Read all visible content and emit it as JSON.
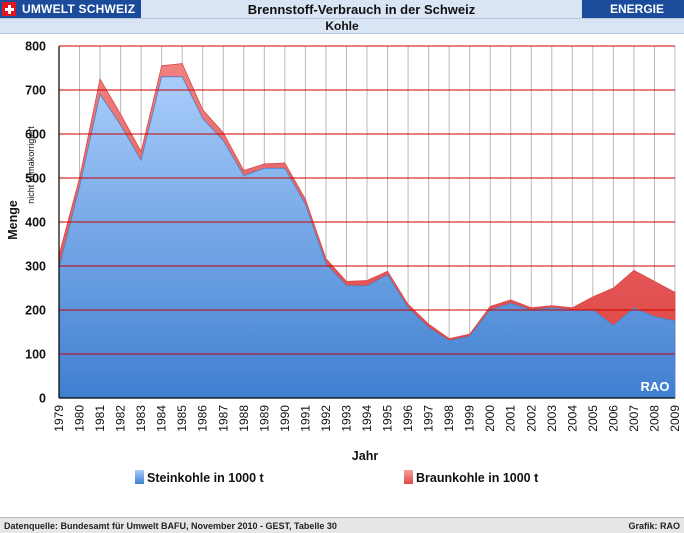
{
  "header": {
    "brand": "UMWELT SCHWEIZ",
    "title": "Brennstoff-Verbrauch in der Schweiz",
    "section": "ENERGIE",
    "subtitle": "Kohle"
  },
  "footer": {
    "source": "Datenquelle: Bundesamt für Umwelt BAFU, November 2010 - GEST, Tabelle 30",
    "credit": "Grafik: RAO"
  },
  "chart_data": {
    "type": "area",
    "stacked": true,
    "ylabel": "Menge",
    "ylabel_note": "nicht klimakorrigiert",
    "xlabel": "Jahr",
    "watermark": "RAO",
    "ylim": [
      0,
      800
    ],
    "yticks": [
      0,
      100,
      200,
      300,
      400,
      500,
      600,
      700,
      800
    ],
    "grid": true,
    "legend_position": "bottom",
    "categories": [
      "1979",
      "1980",
      "1981",
      "1982",
      "1983",
      "1984",
      "1985",
      "1986",
      "1987",
      "1988",
      "1989",
      "1990",
      "1991",
      "1992",
      "1993",
      "1994",
      "1995",
      "1996",
      "1997",
      "1998",
      "1999",
      "2000",
      "2001",
      "2002",
      "2003",
      "2004",
      "2005",
      "2006",
      "2007",
      "2008",
      "2009"
    ],
    "series": [
      {
        "name": "Steinkohle in 1000 t",
        "color": "#5b9bd5",
        "values": [
          295,
          480,
          690,
          620,
          540,
          730,
          730,
          635,
          585,
          505,
          522,
          522,
          440,
          305,
          255,
          255,
          280,
          205,
          160,
          130,
          140,
          200,
          215,
          200,
          205,
          200,
          200,
          165,
          205,
          185,
          175
        ]
      },
      {
        "name": "Braunkohle in 1000 t",
        "color": "#ff6b6b",
        "values": [
          30,
          20,
          35,
          25,
          20,
          25,
          30,
          20,
          18,
          12,
          10,
          12,
          12,
          12,
          10,
          12,
          8,
          8,
          8,
          5,
          5,
          8,
          8,
          5,
          5,
          5,
          30,
          85,
          85,
          80,
          65
        ]
      }
    ]
  }
}
